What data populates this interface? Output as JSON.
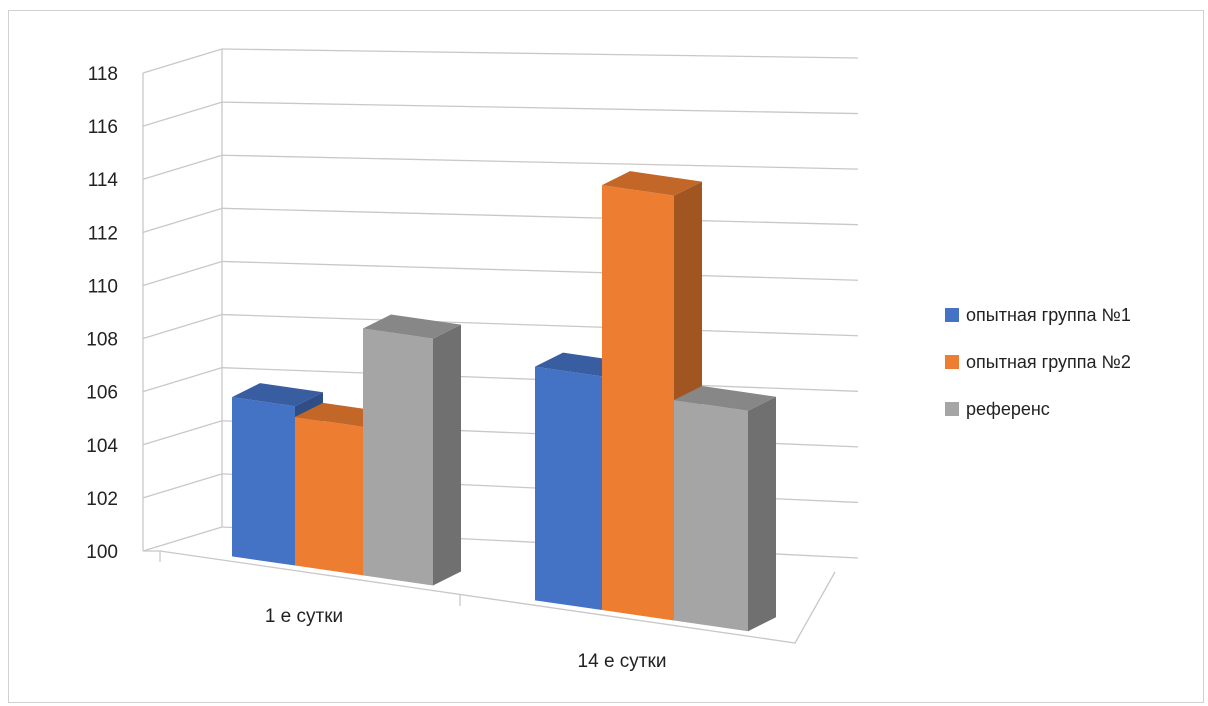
{
  "chart_data": {
    "type": "bar",
    "title": "",
    "categories": [
      "1 е сутки",
      "14 е сутки"
    ],
    "series": [
      {
        "name": "опытная группа №1",
        "values": [
          106.0,
          108.8
        ],
        "color": "#4472c4"
      },
      {
        "name": "опытная группа №2",
        "values": [
          105.6,
          116.0
        ],
        "color": "#ed7d31"
      },
      {
        "name": "референс",
        "values": [
          109.3,
          108.3
        ],
        "color": "#a5a5a5"
      }
    ],
    "y_ticks": [
      "100",
      "102",
      "104",
      "106",
      "108",
      "110",
      "112",
      "114",
      "116",
      "118"
    ],
    "ylim": [
      100,
      118
    ],
    "grid": true,
    "legend_position": "right",
    "style": "3d-clustered-column"
  }
}
